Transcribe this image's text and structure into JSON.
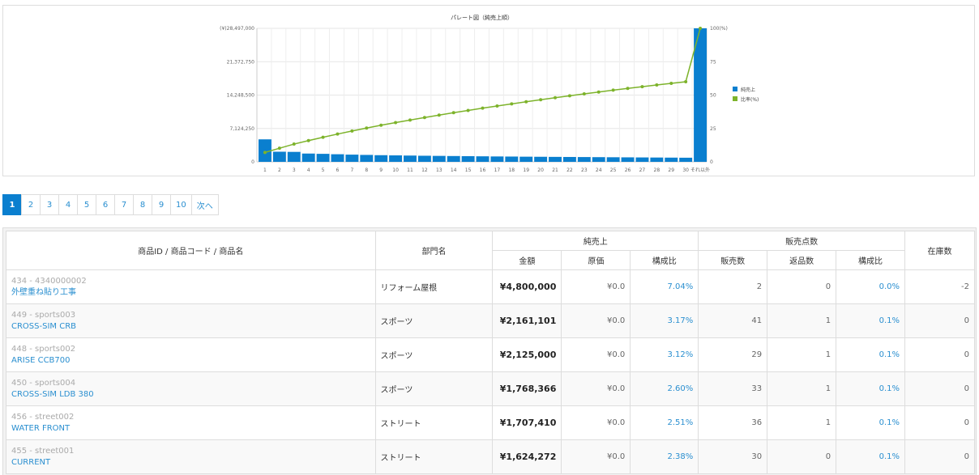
{
  "chart_data": {
    "type": "bar",
    "title": "パレート図（純売上順）",
    "categories": [
      "1",
      "2",
      "3",
      "4",
      "5",
      "6",
      "7",
      "8",
      "9",
      "10",
      "11",
      "12",
      "13",
      "14",
      "15",
      "16",
      "17",
      "18",
      "19",
      "20",
      "21",
      "22",
      "23",
      "24",
      "25",
      "26",
      "27",
      "28",
      "29",
      "30",
      "それ以外"
    ],
    "series": [
      {
        "name": "純売上",
        "type": "bar",
        "values": [
          4800000,
          2161101,
          2125000,
          1768366,
          1707410,
          1624272,
          1540000,
          1480000,
          1420000,
          1380000,
          1340000,
          1300000,
          1270000,
          1240000,
          1210000,
          1180000,
          1150000,
          1130000,
          1100000,
          1080000,
          1060000,
          1040000,
          1020000,
          1000000,
          980000,
          960000,
          940000,
          920000,
          900000,
          880000,
          28497000
        ]
      },
      {
        "name": "比率(%)",
        "type": "line",
        "axis": "right",
        "values": [
          7.04,
          10.2,
          13.3,
          15.9,
          18.4,
          20.8,
          23.1,
          25.3,
          27.4,
          29.4,
          31.3,
          33.2,
          35.0,
          36.8,
          38.5,
          40.2,
          41.8,
          43.4,
          45.0,
          46.5,
          48.0,
          49.5,
          50.9,
          52.3,
          53.7,
          55.0,
          56.3,
          57.6,
          58.8,
          60.0,
          100
        ]
      }
    ],
    "yticks_left": [
      "0",
      "7,124,250",
      "14,248,500",
      "21,372,750",
      "(¥)28,497,000"
    ],
    "yticks_right": [
      "0",
      "25",
      "50",
      "75",
      "100(%)"
    ],
    "ylim": [
      0,
      28497000
    ],
    "y2lim": [
      0,
      100
    ],
    "legend_position": "right",
    "colors": {
      "bar": "#0a7fcf",
      "line": "#7db32b"
    }
  },
  "pager": {
    "pages": [
      "1",
      "2",
      "3",
      "4",
      "5",
      "6",
      "7",
      "8",
      "9",
      "10"
    ],
    "active": "1",
    "next": "次へ"
  },
  "table": {
    "headers": {
      "product": "商品ID / 商品コード / 商品名",
      "dept": "部門名",
      "net_sales": "純売上",
      "units": "販売点数",
      "stock": "在庫数",
      "amount": "金額",
      "cost": "原価",
      "ratio": "構成比",
      "sold": "販売数",
      "returned": "返品数",
      "ratio2": "構成比"
    },
    "rows": [
      {
        "pid": "434 - 4340000002",
        "name": "外壁重ね貼り工事",
        "dept": "リフォーム屋根",
        "amount": "¥4,800,000",
        "cost": "¥0.0",
        "ratio": "7.04%",
        "sold": "2",
        "returned": "0",
        "ratio2": "0.0%",
        "stock": "-2"
      },
      {
        "pid": "449 - sports003",
        "name": "CROSS-SIM CRB",
        "dept": "スポーツ",
        "amount": "¥2,161,101",
        "cost": "¥0.0",
        "ratio": "3.17%",
        "sold": "41",
        "returned": "1",
        "ratio2": "0.1%",
        "stock": "0"
      },
      {
        "pid": "448 - sports002",
        "name": "ARISE CCB700",
        "dept": "スポーツ",
        "amount": "¥2,125,000",
        "cost": "¥0.0",
        "ratio": "3.12%",
        "sold": "29",
        "returned": "1",
        "ratio2": "0.1%",
        "stock": "0"
      },
      {
        "pid": "450 - sports004",
        "name": "CROSS-SIM LDB 380",
        "dept": "スポーツ",
        "amount": "¥1,768,366",
        "cost": "¥0.0",
        "ratio": "2.60%",
        "sold": "33",
        "returned": "1",
        "ratio2": "0.1%",
        "stock": "0"
      },
      {
        "pid": "456 - street002",
        "name": "WATER FRONT",
        "dept": "ストリート",
        "amount": "¥1,707,410",
        "cost": "¥0.0",
        "ratio": "2.51%",
        "sold": "36",
        "returned": "1",
        "ratio2": "0.1%",
        "stock": "0"
      },
      {
        "pid": "455 - street001",
        "name": "CURRENT",
        "dept": "ストリート",
        "amount": "¥1,624,272",
        "cost": "¥0.0",
        "ratio": "2.38%",
        "sold": "30",
        "returned": "0",
        "ratio2": "0.1%",
        "stock": "0"
      }
    ]
  }
}
